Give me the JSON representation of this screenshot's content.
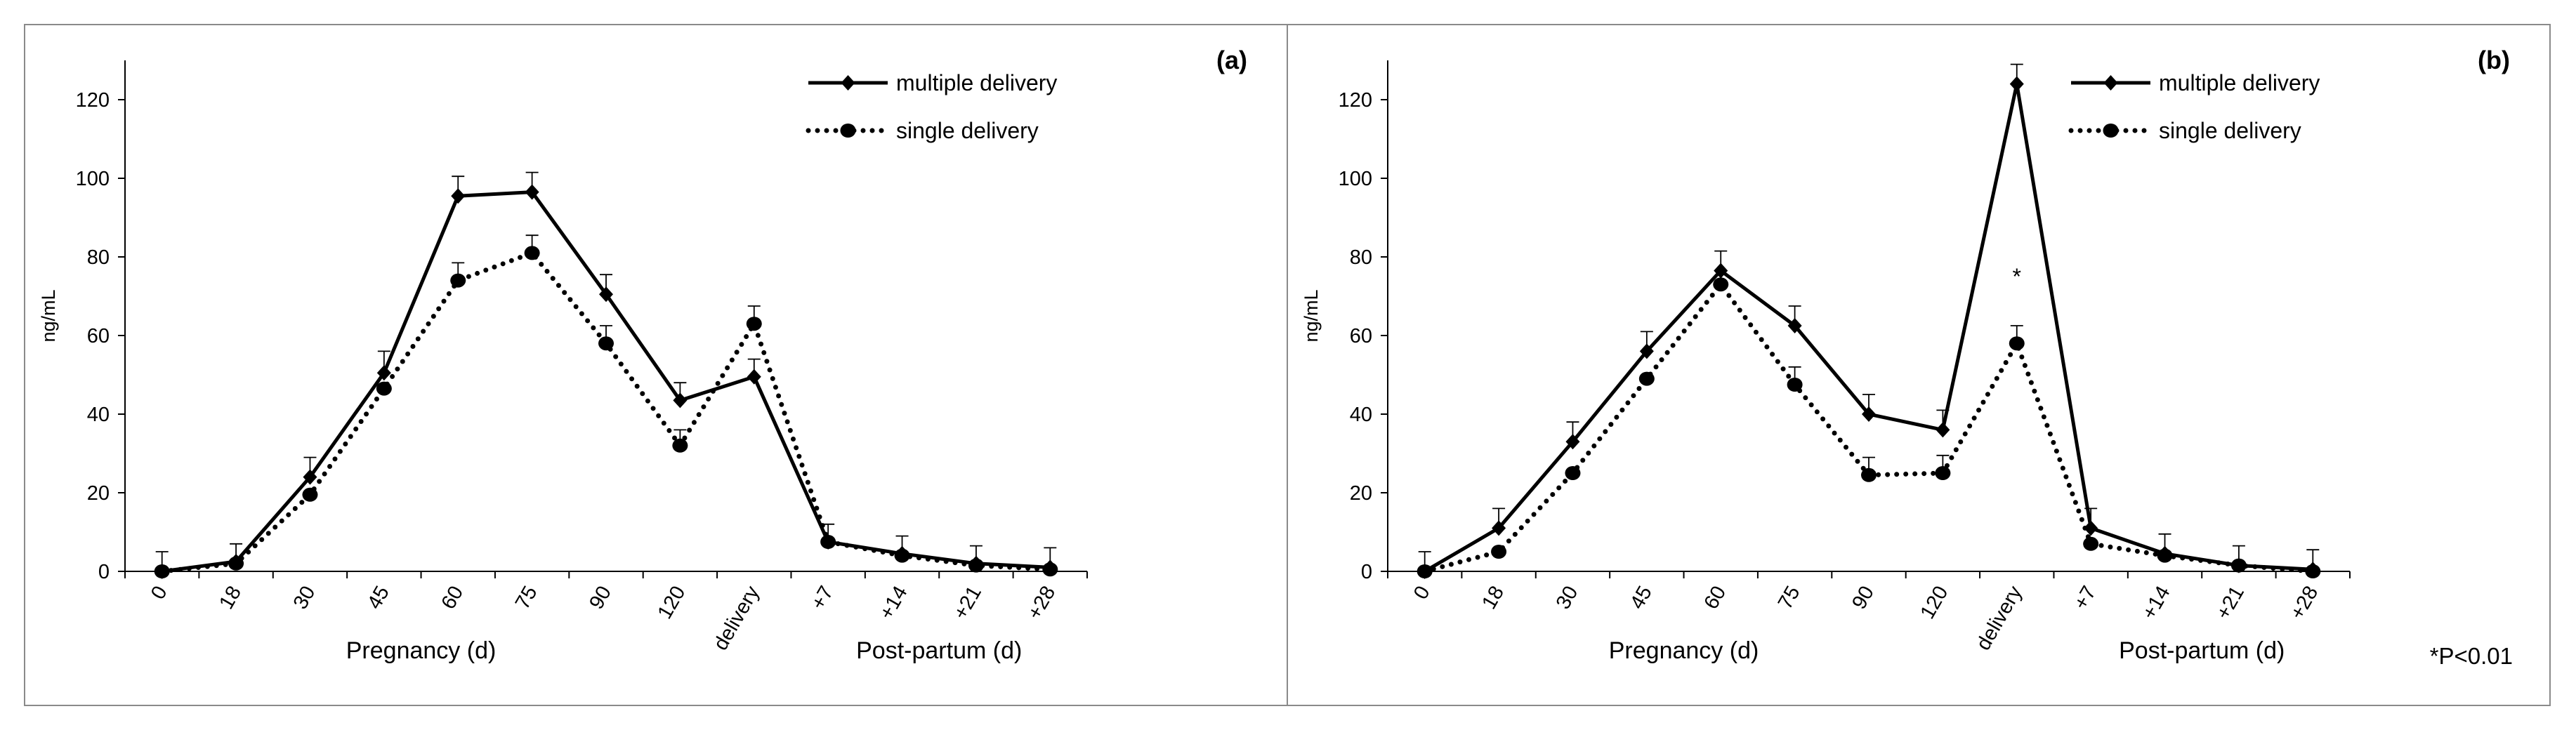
{
  "footnote": "*P<0.01",
  "colors": {
    "line": "#000000",
    "axis": "#000000",
    "frame": "#8a8a8a",
    "background": "#ffffff"
  },
  "chart_data": [
    {
      "type": "line",
      "panel_label": "(a)",
      "ylabel": "ng/mL",
      "ylim": [
        0,
        130
      ],
      "yticks": [
        0,
        20,
        40,
        60,
        80,
        100,
        120
      ],
      "categories": [
        "0",
        "18",
        "30",
        "45",
        "60",
        "75",
        "90",
        "120",
        "delivery",
        "+7",
        "+14",
        "+21",
        "+28"
      ],
      "group_labels": [
        {
          "text": "Pregnancy (d)",
          "span": [
            "0",
            "120"
          ]
        },
        {
          "text": "Post-partum (d)",
          "span": [
            "+7",
            "+28"
          ]
        }
      ],
      "grid": false,
      "legend_position": "top-right",
      "series": [
        {
          "name": "multiple delivery",
          "style": "solid",
          "marker": "diamond",
          "values": [
            0,
            2.5,
            24,
            50.5,
            95.5,
            96.5,
            70.5,
            43.5,
            49.5,
            7.5,
            4.5,
            2,
            1
          ],
          "errors": [
            5,
            4.5,
            5,
            5.5,
            5,
            5,
            5,
            4.5,
            4.5,
            4.5,
            4.5,
            4.5,
            5
          ]
        },
        {
          "name": "single delivery",
          "style": "dotted",
          "marker": "circle",
          "values": [
            0,
            2,
            19.5,
            46.5,
            74,
            81,
            58,
            32,
            63,
            7.5,
            4,
            1.5,
            0.5
          ],
          "errors": [
            0,
            0,
            0,
            0,
            4.5,
            4.5,
            4.5,
            4,
            4.5,
            0,
            0,
            0,
            0
          ]
        }
      ],
      "annotations": []
    },
    {
      "type": "line",
      "panel_label": "(b)",
      "ylabel": "ng/mL",
      "ylim": [
        0,
        130
      ],
      "yticks": [
        0,
        20,
        40,
        60,
        80,
        100,
        120
      ],
      "categories": [
        "0",
        "18",
        "30",
        "45",
        "60",
        "75",
        "90",
        "120",
        "delivery",
        "+7",
        "+14",
        "+21",
        "+28"
      ],
      "group_labels": [
        {
          "text": "Pregnancy (d)",
          "span": [
            "0",
            "120"
          ]
        },
        {
          "text": "Post-partum (d)",
          "span": [
            "+7",
            "+28"
          ]
        }
      ],
      "grid": false,
      "legend_position": "top-right",
      "series": [
        {
          "name": "multiple delivery",
          "style": "solid",
          "marker": "diamond",
          "values": [
            0,
            11,
            33,
            56,
            76.5,
            62.5,
            40,
            36,
            124,
            11,
            4.5,
            1.5,
            0.5
          ],
          "errors": [
            5,
            5,
            5,
            5,
            5,
            5,
            5,
            5,
            5,
            5,
            5,
            5,
            5
          ]
        },
        {
          "name": "single delivery",
          "style": "dotted",
          "marker": "circle",
          "values": [
            0,
            5,
            25,
            49,
            73,
            47.5,
            24.5,
            25,
            58,
            7,
            4,
            1.5,
            0
          ],
          "errors": [
            0,
            0,
            0,
            0,
            0,
            4.5,
            4.5,
            4.5,
            4.5,
            0,
            0,
            0,
            0
          ]
        }
      ],
      "annotations": [
        {
          "text": "*",
          "category": "delivery",
          "y": 73
        }
      ]
    }
  ]
}
